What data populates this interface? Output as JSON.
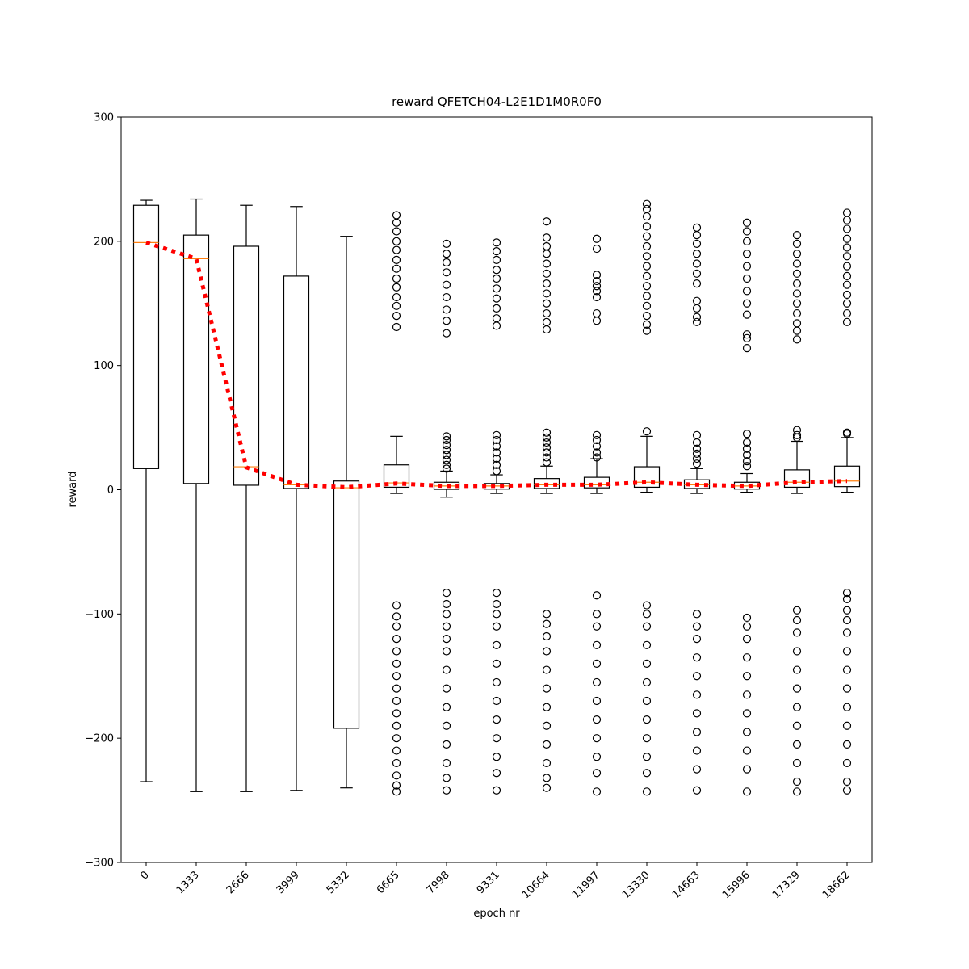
{
  "chart_data": {
    "type": "boxplot",
    "title": "reward QFETCH04-L2E1D1M0R0F0",
    "x_label": "epoch nr",
    "y_label": "reward",
    "categories": [
      "0",
      "1333",
      "2666",
      "3999",
      "5332",
      "6665",
      "7998",
      "9331",
      "10664",
      "11997",
      "13330",
      "14663",
      "15996",
      "17329",
      "18662"
    ],
    "ylim": [
      -300,
      300
    ],
    "yticks": [
      {
        "value": -300,
        "label": "−300"
      },
      {
        "value": -200,
        "label": "−200"
      },
      {
        "value": -100,
        "label": "−100"
      },
      0,
      100,
      200,
      300
    ],
    "box_color": "#000000",
    "median_color": "#ff7f0e",
    "boxes": [
      {
        "whislo": -235,
        "q1": 17,
        "med": 199,
        "q3": 229,
        "whishi": 233,
        "fliers": []
      },
      {
        "whislo": -243,
        "q1": 5,
        "med": 186,
        "q3": 205,
        "whishi": 234,
        "fliers": []
      },
      {
        "whislo": -243,
        "q1": 3.6,
        "med": 18.5,
        "q3": 196,
        "whishi": 229,
        "fliers": []
      },
      {
        "whislo": -242,
        "q1": 1,
        "med": 4,
        "q3": 172,
        "whishi": 228,
        "fliers": []
      },
      {
        "whislo": -240,
        "q1": -192,
        "med": 1.6,
        "q3": 7,
        "whishi": 204,
        "fliers": []
      },
      {
        "whislo": -3,
        "q1": 2,
        "med": 5.5,
        "q3": 20,
        "whishi": 43,
        "fliers": [
          221,
          215,
          208,
          200,
          193,
          185,
          178,
          170,
          163,
          155,
          148,
          140,
          131,
          -93,
          -102,
          -110,
          -120,
          -130,
          -140,
          -150,
          -160,
          -170,
          -180,
          -190,
          -200,
          -210,
          -220,
          -230,
          -238,
          -243
        ]
      },
      {
        "whislo": -6,
        "q1": 0.3,
        "med": 3,
        "q3": 6,
        "whishi": 15,
        "fliers": [
          198,
          190,
          183,
          175,
          165,
          155,
          145,
          136,
          126,
          43,
          40,
          36,
          32,
          28,
          24,
          20,
          17,
          -83,
          -92,
          -100,
          -110,
          -120,
          -130,
          -145,
          -160,
          -175,
          -190,
          -205,
          -220,
          -232,
          -242
        ]
      },
      {
        "whislo": -3,
        "q1": 0.5,
        "med": 3,
        "q3": 5,
        "whishi": 12,
        "fliers": [
          199,
          192,
          185,
          177,
          170,
          162,
          154,
          146,
          138,
          132,
          44,
          40,
          35,
          30,
          25,
          20,
          15,
          -83,
          -92,
          -100,
          -110,
          -125,
          -140,
          -155,
          -170,
          -185,
          -200,
          -215,
          -228,
          -242
        ]
      },
      {
        "whislo": -3,
        "q1": 1,
        "med": 4,
        "q3": 9,
        "whishi": 19,
        "fliers": [
          216,
          203,
          196,
          190,
          182,
          174,
          166,
          158,
          150,
          142,
          135,
          129,
          46,
          42,
          38,
          34,
          30,
          26,
          22,
          -100,
          -108,
          -118,
          -130,
          -145,
          -160,
          -175,
          -190,
          -205,
          -220,
          -232,
          -240
        ]
      },
      {
        "whislo": -3,
        "q1": 1.5,
        "med": 4,
        "q3": 10,
        "whishi": 25,
        "fliers": [
          202,
          194,
          173,
          168,
          164,
          160,
          155,
          142,
          136,
          44,
          40,
          35,
          30,
          26,
          -85,
          -100,
          -110,
          -125,
          -140,
          -155,
          -170,
          -185,
          -200,
          -215,
          -228,
          -243
        ]
      },
      {
        "whislo": -2,
        "q1": 2,
        "med": 6,
        "q3": 18.5,
        "whishi": 43,
        "fliers": [
          230,
          226,
          220,
          212,
          204,
          196,
          188,
          180,
          172,
          164,
          156,
          148,
          140,
          133,
          128,
          47,
          -93,
          -100,
          -110,
          -125,
          -140,
          -155,
          -170,
          -185,
          -200,
          -215,
          -228,
          -243
        ]
      },
      {
        "whislo": -3,
        "q1": 1,
        "med": 4,
        "q3": 8,
        "whishi": 17,
        "fliers": [
          211,
          205,
          198,
          190,
          182,
          174,
          166,
          152,
          146,
          139,
          135,
          44,
          38,
          33,
          29,
          25,
          21,
          -100,
          -110,
          -120,
          -135,
          -150,
          -165,
          -180,
          -195,
          -210,
          -225,
          -242
        ]
      },
      {
        "whislo": -2,
        "q1": 0.5,
        "med": 3,
        "q3": 6,
        "whishi": 13,
        "fliers": [
          215,
          208,
          200,
          190,
          180,
          170,
          160,
          150,
          141,
          125,
          122,
          114,
          45,
          38,
          33,
          28,
          23,
          19,
          -103,
          -110,
          -120,
          -135,
          -150,
          -165,
          -180,
          -195,
          -210,
          -225,
          -243
        ]
      },
      {
        "whislo": -3,
        "q1": 2,
        "med": 6,
        "q3": 16,
        "whishi": 39,
        "fliers": [
          205,
          198,
          190,
          182,
          174,
          166,
          158,
          150,
          142,
          134,
          128,
          121,
          48,
          44,
          42,
          -97,
          -105,
          -115,
          -130,
          -145,
          -160,
          -175,
          -190,
          -205,
          -220,
          -235,
          -243
        ]
      },
      {
        "whislo": -2,
        "q1": 2.5,
        "med": 7,
        "q3": 19,
        "whishi": 42,
        "fliers": [
          223,
          217,
          210,
          202,
          195,
          188,
          180,
          172,
          165,
          157,
          150,
          142,
          135,
          46,
          45,
          -83,
          -88,
          -97,
          -105,
          -115,
          -130,
          -145,
          -160,
          -175,
          -190,
          -205,
          -220,
          -235,
          -242
        ]
      }
    ],
    "trend": {
      "color": "#ff0000",
      "values": [
        199,
        186,
        18,
        4,
        2,
        5,
        3,
        3,
        4,
        4,
        6,
        4,
        3,
        6,
        7
      ]
    }
  }
}
